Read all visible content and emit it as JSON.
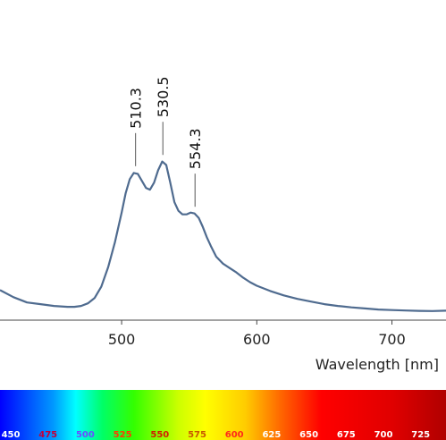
{
  "chart_data": {
    "type": "line",
    "xlabel": "Wavelength [nm]",
    "xlim": [
      410,
      740
    ],
    "ylim": [
      0,
      1
    ],
    "x_ticks": [
      500,
      600,
      700
    ],
    "grid": false,
    "line_color": "#4f6b8f",
    "series": [
      {
        "x": [
          410,
          420,
          430,
          440,
          450,
          460,
          465,
          470,
          475,
          480,
          485,
          490,
          495,
          500,
          503,
          506,
          509,
          512,
          515,
          518,
          521,
          524,
          527,
          530,
          533,
          536,
          539,
          542,
          545,
          548,
          551,
          554,
          557,
          560,
          563,
          566,
          570,
          575,
          580,
          585,
          590,
          595,
          600,
          610,
          620,
          630,
          640,
          650,
          660,
          670,
          680,
          690,
          700,
          710,
          720,
          730,
          740
        ],
        "y": [
          0.13,
          0.09,
          0.06,
          0.05,
          0.04,
          0.035,
          0.035,
          0.04,
          0.055,
          0.085,
          0.15,
          0.26,
          0.4,
          0.57,
          0.68,
          0.76,
          0.795,
          0.79,
          0.75,
          0.71,
          0.7,
          0.74,
          0.81,
          0.86,
          0.84,
          0.74,
          0.63,
          0.58,
          0.56,
          0.56,
          0.57,
          0.565,
          0.54,
          0.49,
          0.43,
          0.38,
          0.32,
          0.28,
          0.255,
          0.23,
          0.2,
          0.175,
          0.155,
          0.125,
          0.1,
          0.08,
          0.065,
          0.05,
          0.04,
          0.032,
          0.026,
          0.02,
          0.017,
          0.014,
          0.012,
          0.011,
          0.013
        ]
      }
    ],
    "peaks": [
      {
        "x": 510.3,
        "label": "510.3"
      },
      {
        "x": 530.5,
        "label": "530.5"
      },
      {
        "x": 554.3,
        "label": "554.3"
      }
    ],
    "color_band": {
      "labels": [
        "450",
        "475",
        "500",
        "525",
        "550",
        "575",
        "600",
        "625",
        "650",
        "675",
        "700",
        "725"
      ],
      "label_colors": [
        "#ffffff",
        "#c0003c",
        "#6a4cff",
        "#ff3b00",
        "#d21f00",
        "#c85a00",
        "#ff2a1a",
        "#ffffff",
        "#ffffff",
        "#ffffff",
        "#ffffff",
        "#ffffff"
      ]
    }
  }
}
